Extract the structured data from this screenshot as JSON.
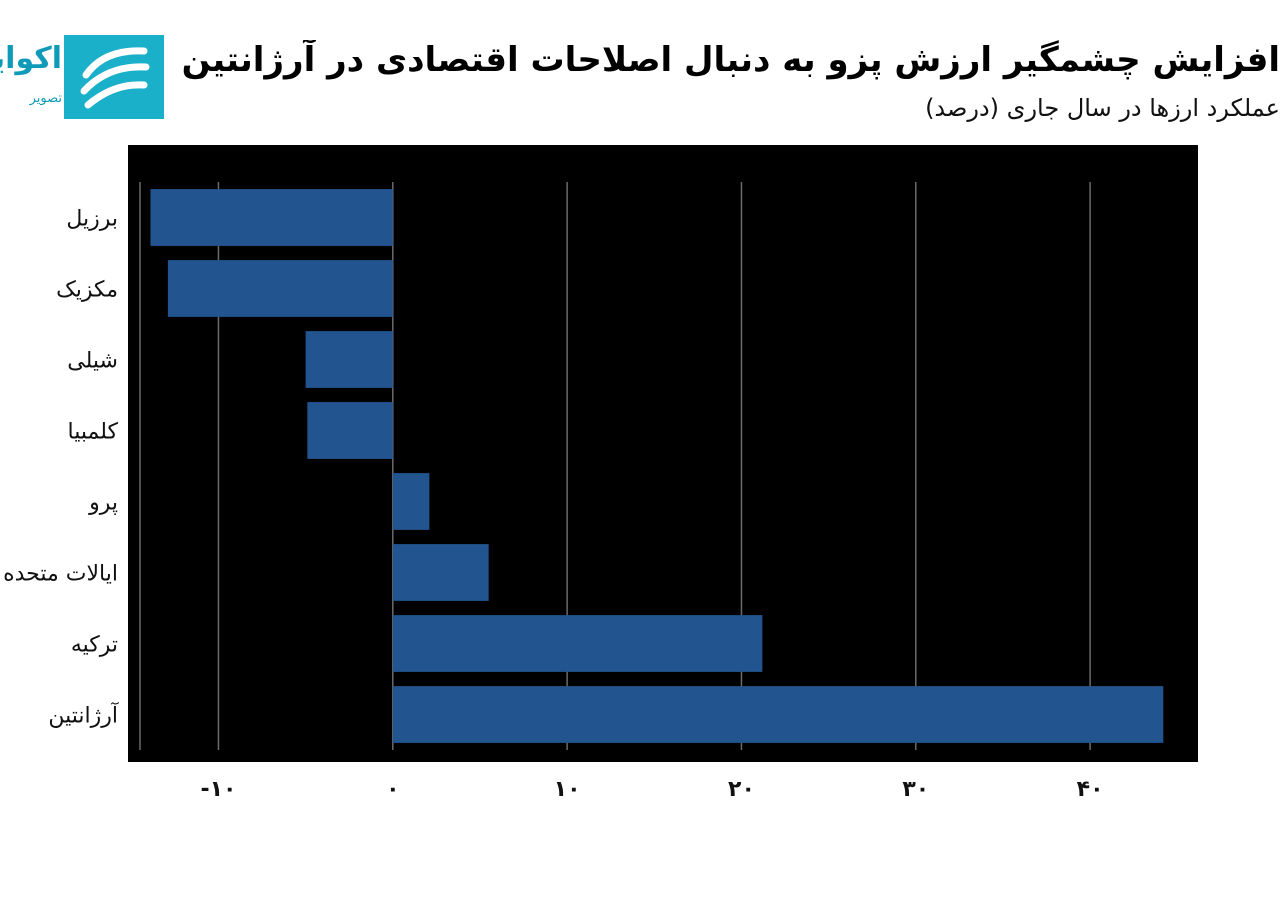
{
  "title": "افزایش چشمگیر ارزش پزو به دنبال اصلاحات اقتصادی در آرژانتین",
  "subtitle": "عملکرد ارزها در سال جاری (درصد)",
  "logo": {
    "name": "اکوایران",
    "tagline": "تصویر"
  },
  "colors": {
    "bar": "#22558f",
    "plot_background": "#000000",
    "grid": "#6b6b6b",
    "logo": "#1ab0c9"
  },
  "chart_data": {
    "type": "bar",
    "orientation": "horizontal",
    "title": "افزایش چشمگیر ارزش پزو به دنبال اصلاحات اقتصادی در آرژانتین",
    "subtitle": "عملکرد ارزها در سال جاری (درصد)",
    "categories": [
      "برزیل",
      "مکزیک",
      "شیلی",
      "کلمبیا",
      "پرو",
      "ایالات متحده",
      "ترکیه",
      "آرژانتین"
    ],
    "values": [
      -13.9,
      -12.9,
      -5.0,
      -4.9,
      2.1,
      5.5,
      21.2,
      44.2
    ],
    "xlim": [
      -14.5,
      45.5
    ],
    "xticks": [
      -10,
      0,
      10,
      20,
      30,
      40
    ],
    "xtick_labels": [
      "-۱۰",
      "۰",
      "۱۰",
      "۲۰",
      "۳۰",
      "۴۰"
    ],
    "xlabel": "",
    "ylabel": "",
    "grid": "vertical"
  }
}
